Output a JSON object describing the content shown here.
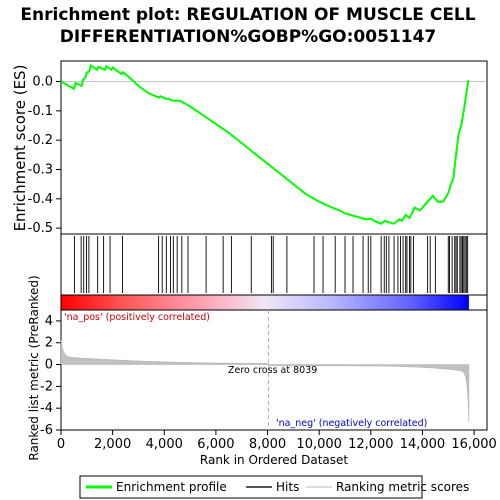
{
  "chart_data": {
    "type": "line",
    "title_line1": "Enrichment plot: REGULATION OF MUSCLE CELL",
    "title_line2": "DIFFERENTIATION%GOBP%GO:0051147",
    "es_ylabel": "Enrichment score (ES)",
    "metric_ylabel_line1": "Ranked list metric (PreRanked)",
    "xlabel": "Rank in Ordered Dataset",
    "x_range": [
      0,
      16500
    ],
    "x_ticks": [
      0,
      2000,
      4000,
      6000,
      8000,
      10000,
      12000,
      14000,
      16000
    ],
    "x_tick_labels": [
      "0",
      "2,000",
      "4,000",
      "6,000",
      "8,000",
      "10,000",
      "12,000",
      "14,000",
      "16,000"
    ],
    "es_ylim": [
      -0.52,
      0.07
    ],
    "es_ticks": [
      0.0,
      -0.1,
      -0.2,
      -0.3,
      -0.4,
      -0.5
    ],
    "es_tick_labels": [
      "0.0",
      "-0.1",
      "-0.2",
      "-0.3",
      "-0.4",
      "-0.5"
    ],
    "metric_ylim": [
      -6,
      5
    ],
    "metric_ticks": [
      4,
      2,
      0,
      -2,
      -4,
      -6
    ],
    "metric_tick_labels": [
      "4",
      "2",
      "0",
      "-2",
      "-4",
      "-6"
    ],
    "zero_cross_label": "Zero cross at 8039",
    "zero_cross_rank": 8039,
    "pos_label": "'na_pos' (positively correlated)",
    "neg_label": "'na_neg' (negatively correlated)",
    "total_genes": 15800,
    "series": [
      {
        "name": "Enrichment profile",
        "color": "#00ff00",
        "x": [
          0,
          500,
          560,
          800,
          850,
          950,
          1000,
          1100,
          1150,
          1400,
          1450,
          1700,
          1750,
          1950,
          2000,
          2350,
          2400,
          2700,
          3000,
          3400,
          3800,
          3850,
          4100,
          4150,
          4300,
          4600,
          4700,
          5000,
          5500,
          6000,
          6500,
          7000,
          7500,
          8000,
          8500,
          9000,
          9500,
          10000,
          10500,
          10800,
          11000,
          11200,
          11500,
          11800,
          12000,
          12200,
          12400,
          12550,
          12700,
          12900,
          13100,
          13200,
          13350,
          13500,
          13700,
          13900,
          14100,
          14200,
          14400,
          14600,
          14800,
          15000,
          15100,
          15200,
          15300,
          15400,
          15500,
          15600,
          15700,
          15780
        ],
        "y": [
          0.0,
          -0.025,
          -0.005,
          -0.015,
          0.005,
          0.015,
          0.03,
          0.035,
          0.055,
          0.04,
          0.05,
          0.04,
          0.052,
          0.04,
          0.048,
          0.025,
          0.032,
          0.01,
          -0.015,
          -0.04,
          -0.055,
          -0.05,
          -0.06,
          -0.058,
          -0.065,
          -0.065,
          -0.07,
          -0.085,
          -0.115,
          -0.145,
          -0.175,
          -0.21,
          -0.245,
          -0.28,
          -0.315,
          -0.35,
          -0.385,
          -0.41,
          -0.43,
          -0.44,
          -0.45,
          -0.455,
          -0.462,
          -0.47,
          -0.468,
          -0.478,
          -0.485,
          -0.475,
          -0.48,
          -0.485,
          -0.47,
          -0.475,
          -0.455,
          -0.465,
          -0.43,
          -0.44,
          -0.42,
          -0.41,
          -0.39,
          -0.41,
          -0.41,
          -0.38,
          -0.35,
          -0.33,
          -0.25,
          -0.18,
          -0.15,
          -0.1,
          -0.04,
          0.005
        ]
      }
    ],
    "hits": [
      520,
      780,
      880,
      990,
      1080,
      1420,
      1650,
      1900,
      2380,
      3780,
      3920,
      4080,
      4240,
      4350,
      4500,
      4680,
      4920,
      5620,
      6280,
      6600,
      7370,
      8150,
      8220,
      8750,
      9800,
      10150,
      10620,
      11000,
      11310,
      11700,
      11900,
      12000,
      12400,
      12520,
      12600,
      12700,
      12900,
      13050,
      13150,
      13250,
      13350,
      13400,
      13500,
      13550,
      13650,
      14200,
      14300,
      14500,
      15000,
      15050,
      15150,
      15250,
      15300,
      15350,
      15450,
      15500,
      15550,
      15600,
      15650,
      15700,
      15750
    ],
    "legend": [
      "Enrichment profile",
      "Hits",
      "Ranking metric scores"
    ]
  }
}
